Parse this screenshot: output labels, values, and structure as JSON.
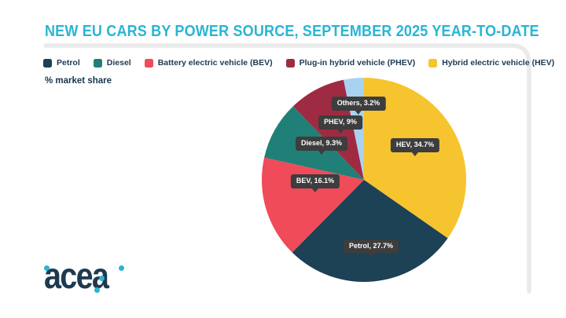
{
  "header": {
    "title": "NEW EU CARS BY POWER SOURCE, SEPTEMBER 2025 YEAR-TO-DATE"
  },
  "logo": {
    "text": "acea"
  },
  "colors": {
    "title_accent": "#29b5d3",
    "text_dark": "#1d3a52",
    "tooltip_bg": "#3d3d3d",
    "frame_line": "#eaeaea"
  },
  "chart_data": {
    "type": "pie",
    "title": "NEW EU CARS BY POWER SOURCE, SEPTEMBER 2025 YEAR-TO-DATE",
    "unit": "% market share",
    "legend_position": "top",
    "start_angle_deg": 0,
    "direction": "clockwise",
    "slices": [
      {
        "label": "Hybrid electric vehicle (HEV)",
        "short": "HEV",
        "value": 34.7,
        "display": "HEV, 34.7%",
        "color": "#f6c42e"
      },
      {
        "label": "Petrol",
        "short": "Petrol",
        "value": 27.7,
        "display": "Petrol, 27.7%",
        "color": "#1d4155"
      },
      {
        "label": "Battery electric vehicle (BEV)",
        "short": "BEV",
        "value": 16.1,
        "display": "BEV, 16.1%",
        "color": "#ef4b59"
      },
      {
        "label": "Diesel",
        "short": "Diesel",
        "value": 9.3,
        "display": "Diesel, 9.3%",
        "color": "#208078"
      },
      {
        "label": "Plug-in hybrid vehicle (PHEV)",
        "short": "PHEV",
        "value": 9,
        "display": "PHEV, 9%",
        "color": "#9e2b42"
      },
      {
        "label": "Others",
        "short": "Others",
        "value": 3.2,
        "display": "Others, 3.2%",
        "color": "#a8d2f0"
      }
    ],
    "legend_order": [
      "Petrol",
      "Diesel",
      "BEV",
      "PHEV",
      "HEV",
      "Others"
    ]
  }
}
